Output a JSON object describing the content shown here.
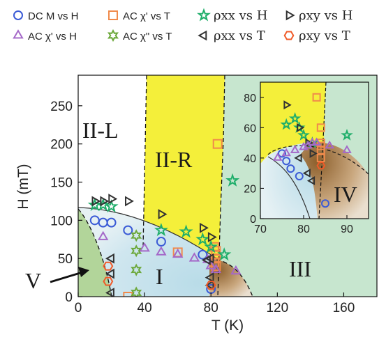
{
  "chart_data": {
    "type": "scatter",
    "title": "",
    "xlabel": "T (K)",
    "ylabel": "H (mT)",
    "xlim": [
      0,
      180
    ],
    "ylim": [
      0,
      290
    ],
    "x_ticks": [
      "0",
      "40",
      "80",
      "120",
      "160"
    ],
    "y_ticks": [
      "0",
      "50",
      "100",
      "150",
      "200",
      "250"
    ],
    "grid": false,
    "legend_position": "top",
    "legend": [
      {
        "key": "dcm_h",
        "label": "DC M vs H",
        "marker": "circle",
        "color": "#3b5bd6"
      },
      {
        "key": "acchi1_t",
        "label": "AC χ' vs T",
        "marker": "square",
        "color": "#f08a4b"
      },
      {
        "key": "rxx_h",
        "label": "ρxx vs H",
        "marker": "star",
        "color": "#1fae6a"
      },
      {
        "key": "rxy_h",
        "label": "ρxy vs H",
        "marker": "triangle-right",
        "color": "#333333"
      },
      {
        "key": "acchi1_h",
        "label": "AC χ' vs H",
        "marker": "triangle-up",
        "color": "#a468c8"
      },
      {
        "key": "acchi2_t",
        "label": "AC χ\" vs T",
        "marker": "hexagram",
        "color": "#6ca83a"
      },
      {
        "key": "rxx_t",
        "label": "ρxx vs T",
        "marker": "triangle-left",
        "color": "#333333"
      },
      {
        "key": "rxy_t",
        "label": "ρxy vs T",
        "marker": "hexagon",
        "color": "#f05a28"
      }
    ],
    "regions": [
      "II-L",
      "II-R",
      "I",
      "III",
      "IV",
      "V"
    ],
    "series": [
      {
        "key": "dcm_h",
        "x": [
          10,
          15,
          20,
          30,
          50,
          75,
          80
        ],
        "y": [
          100,
          97,
          97,
          87,
          72,
          55,
          10
        ]
      },
      {
        "key": "acchi1_t",
        "x": [
          30,
          60,
          82,
          83,
          83,
          83,
          82,
          83,
          84
        ],
        "y": [
          0,
          58,
          65,
          60,
          55,
          50,
          45,
          40,
          200
        ]
      },
      {
        "key": "rxx_h",
        "x": [
          10,
          15,
          20,
          50,
          65,
          75,
          80,
          88,
          93
        ],
        "y": [
          120,
          120,
          118,
          87,
          85,
          75,
          65,
          55,
          152
        ]
      },
      {
        "key": "rxy_h",
        "x": [
          10,
          15,
          20,
          30,
          50,
          75,
          80
        ],
        "y": [
          125,
          125,
          128,
          125,
          108,
          90,
          78
        ]
      },
      {
        "key": "acchi1_h",
        "x": [
          15,
          40,
          50,
          60,
          70,
          78,
          80,
          83,
          95
        ],
        "y": [
          78,
          63,
          58,
          55,
          50,
          48,
          40,
          35,
          33
        ]
      },
      {
        "key": "acchi2_t",
        "x": [
          35,
          35,
          35,
          35
        ],
        "y": [
          80,
          60,
          35,
          5
        ]
      },
      {
        "key": "rxx_t",
        "x": [
          20,
          20,
          20,
          78,
          80,
          80,
          80
        ],
        "y": [
          30,
          50,
          5,
          48,
          25,
          15,
          50
        ]
      },
      {
        "key": "rxy_t",
        "x": [
          18,
          18,
          80
        ],
        "y": [
          40,
          20,
          15
        ]
      }
    ],
    "inset": {
      "xlim": [
        70,
        95
      ],
      "ylim": [
        0,
        90
      ],
      "x_ticks": [
        "70",
        "80",
        "90"
      ],
      "y_ticks": [
        "0",
        "20",
        "40",
        "60",
        "80"
      ],
      "region": "IV",
      "series": [
        {
          "key": "dcm_h",
          "x": [
            75,
            76,
            77,
            79,
            85
          ],
          "y": [
            43,
            38,
            33,
            28,
            10
          ]
        },
        {
          "key": "acchi1_t",
          "x": [
            83,
            84,
            84,
            84,
            84,
            84
          ],
          "y": [
            80,
            60,
            50,
            48,
            45,
            40
          ]
        },
        {
          "key": "rxx_h",
          "x": [
            76,
            78,
            79,
            80,
            82,
            90
          ],
          "y": [
            62,
            66,
            60,
            55,
            50,
            55
          ]
        },
        {
          "key": "rxy_h",
          "x": [
            76,
            79,
            81,
            82
          ],
          "y": [
            75,
            60,
            50,
            43
          ]
        },
        {
          "key": "acchi1_h",
          "x": [
            74,
            76,
            78,
            80,
            81,
            82,
            83,
            86,
            90
          ],
          "y": [
            40,
            43,
            45,
            47,
            48,
            50,
            50,
            48,
            45
          ]
        },
        {
          "key": "acchi2_t",
          "x": [],
          "y": []
        },
        {
          "key": "rxx_t",
          "x": [
            79,
            81,
            82
          ],
          "y": [
            40,
            30,
            25
          ]
        },
        {
          "key": "rxy_t",
          "x": [
            84
          ],
          "y": [
            35
          ]
        }
      ]
    }
  }
}
